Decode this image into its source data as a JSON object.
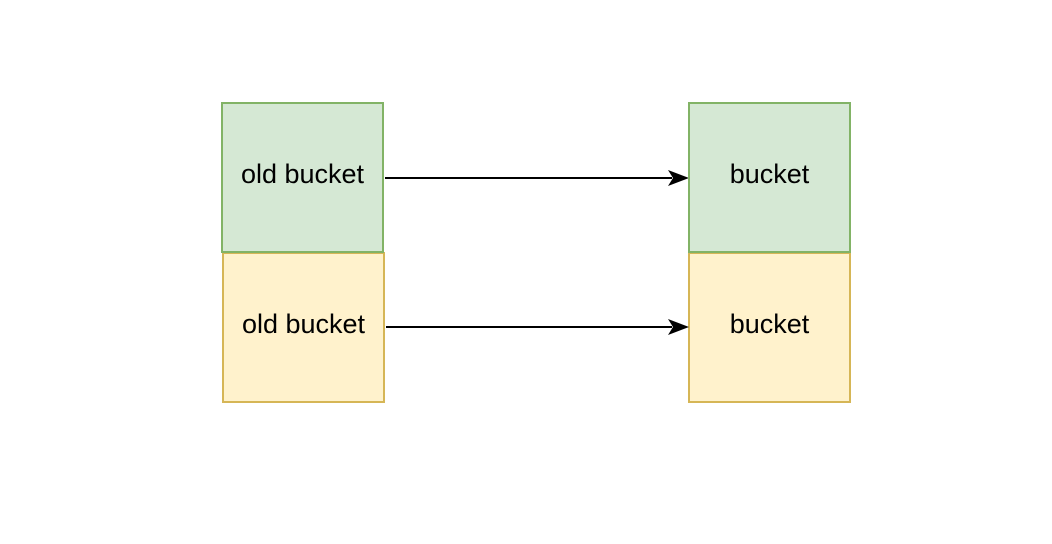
{
  "diagram": {
    "left_column": [
      {
        "label": "old bucket",
        "fill": "#d5e8d4",
        "stroke": "#82b366"
      },
      {
        "label": "old bucket",
        "fill": "#fff2cc",
        "stroke": "#d6b656"
      }
    ],
    "right_column": [
      {
        "label": "bucket",
        "fill": "#d5e8d4",
        "stroke": "#82b366"
      },
      {
        "label": "bucket",
        "fill": "#fff2cc",
        "stroke": "#d6b656"
      }
    ],
    "edges": [
      {
        "from": "old bucket (green)",
        "to": "bucket (green)"
      },
      {
        "from": "old bucket (yellow)",
        "to": "bucket (yellow)"
      }
    ],
    "colors": {
      "arrow": "#000000",
      "text": "#000000",
      "background": "#ffffff"
    }
  }
}
